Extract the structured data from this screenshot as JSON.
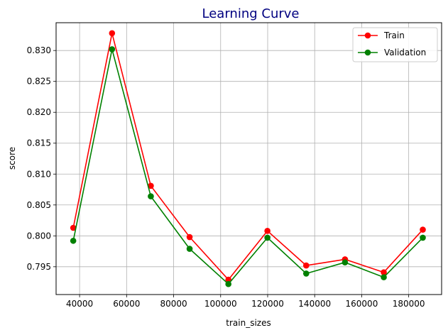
{
  "chart_data": {
    "type": "line",
    "title": "Learning Curve",
    "title_color": "#000080",
    "xlabel": "train_sizes",
    "ylabel": "score",
    "xlim": [
      30000,
      194000
    ],
    "ylim": [
      0.7905,
      0.8345
    ],
    "x_ticks": [
      40000,
      60000,
      80000,
      100000,
      120000,
      140000,
      160000,
      180000
    ],
    "x_tick_labels": [
      "40000",
      "60000",
      "80000",
      "100000",
      "120000",
      "140000",
      "160000",
      "180000"
    ],
    "y_ticks": [
      0.795,
      0.8,
      0.805,
      0.81,
      0.815,
      0.82,
      0.825,
      0.83
    ],
    "y_tick_labels": [
      "0.795",
      "0.800",
      "0.805",
      "0.810",
      "0.815",
      "0.820",
      "0.825",
      "0.830"
    ],
    "grid": true,
    "legend_position": "top-right",
    "x": [
      37300,
      53800,
      70300,
      86800,
      103300,
      119900,
      136400,
      152900,
      169400,
      186000
    ],
    "series": [
      {
        "name": "Train",
        "color": "#ff0000",
        "marker": "circle",
        "values": [
          0.8013,
          0.8328,
          0.8081,
          0.7998,
          0.7929,
          0.8008,
          0.7952,
          0.7962,
          0.7941,
          0.801
        ]
      },
      {
        "name": "Validation",
        "color": "#008000",
        "marker": "circle",
        "values": [
          0.7992,
          0.8302,
          0.8064,
          0.7979,
          0.7922,
          0.7997,
          0.7939,
          0.7957,
          0.7933,
          0.7997
        ]
      }
    ]
  }
}
